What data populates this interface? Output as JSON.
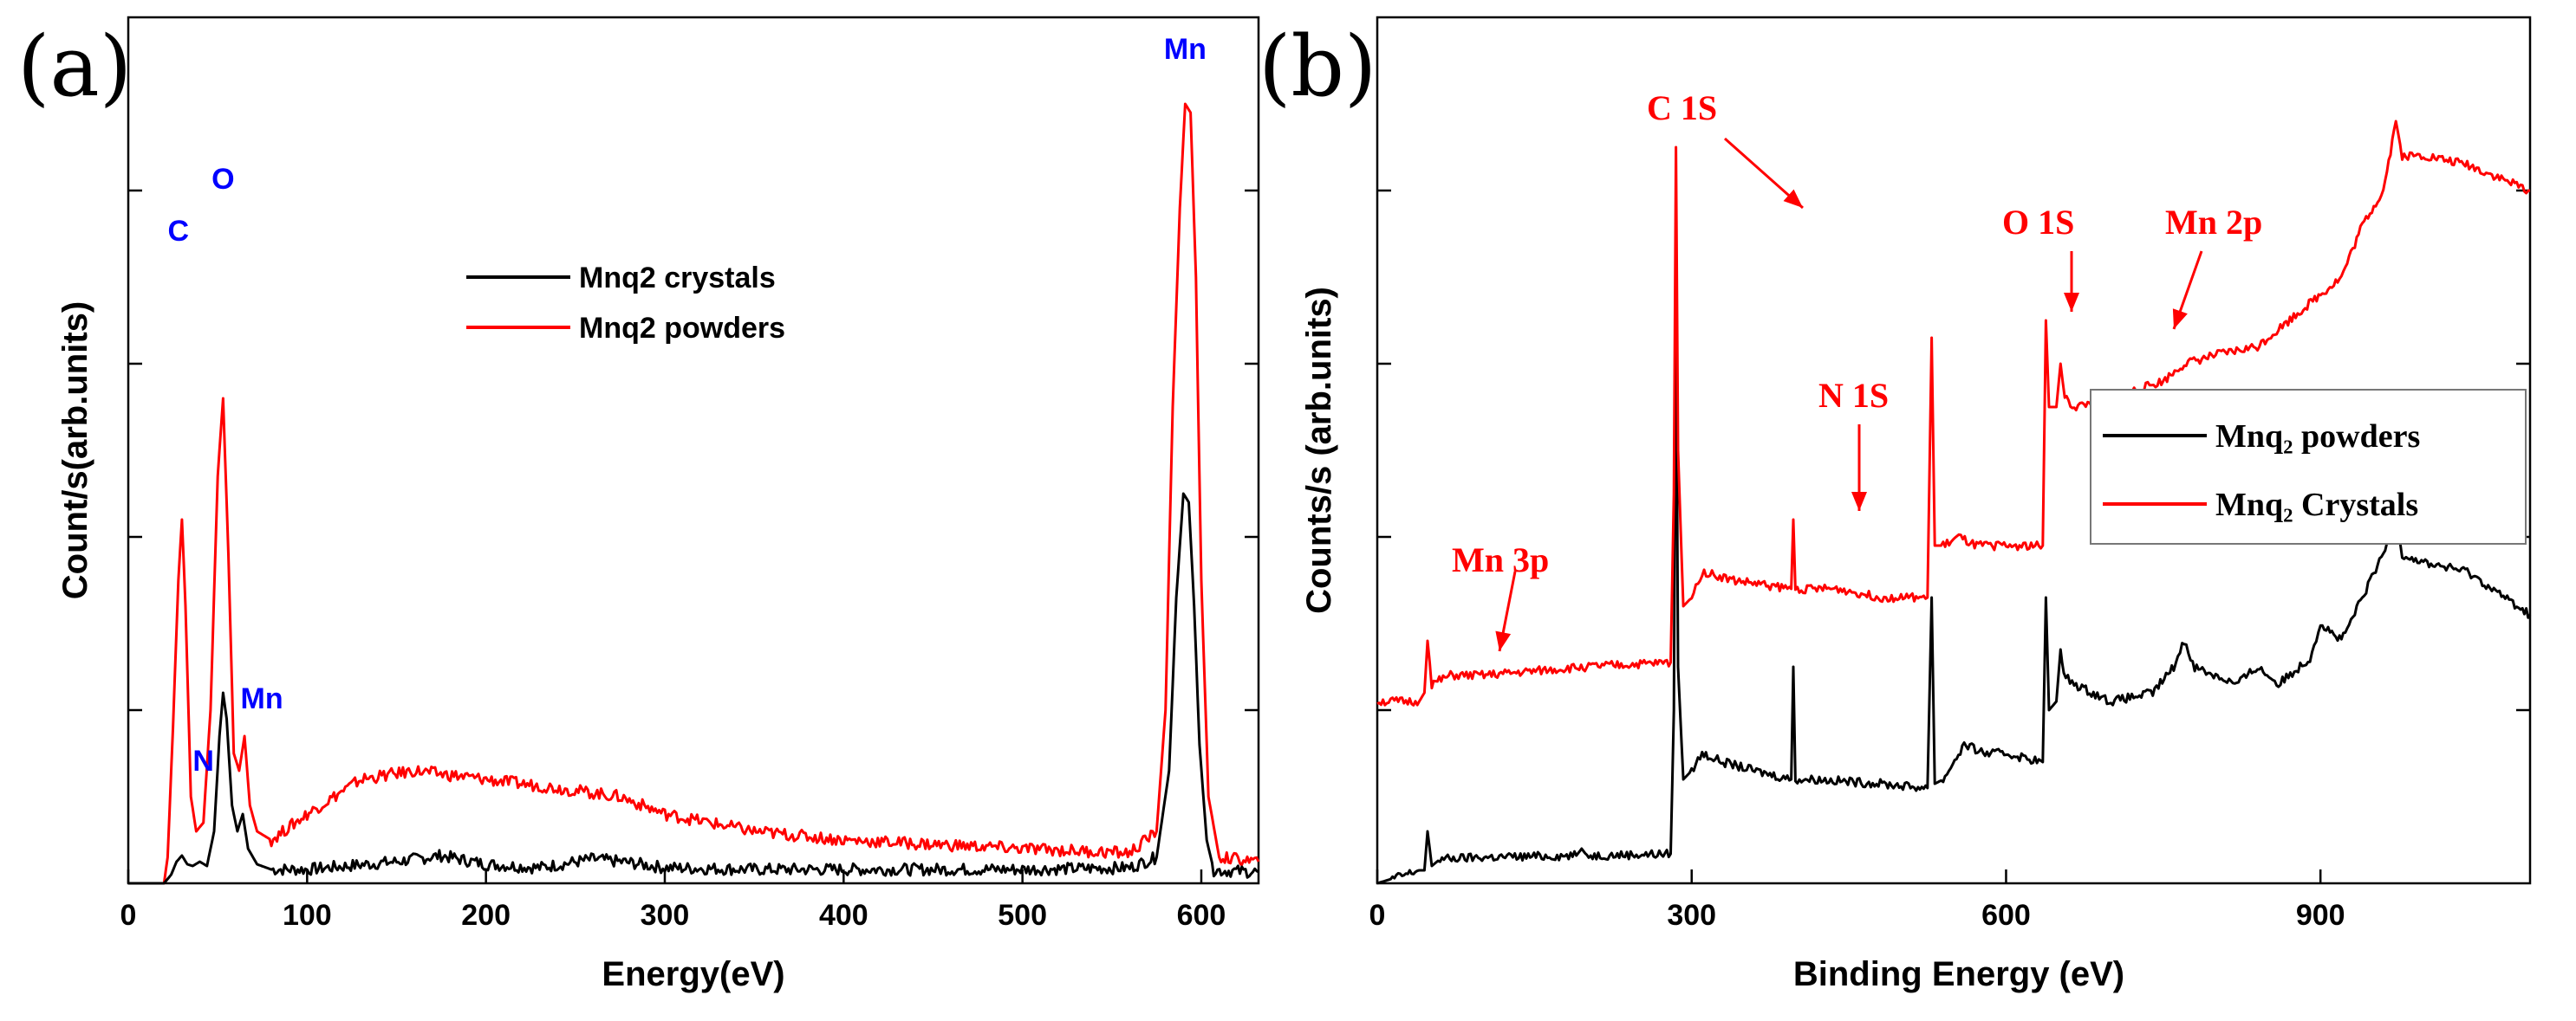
{
  "chart_data": [
    {
      "panel": "(a)",
      "type": "line",
      "title": "",
      "xlabel": "Energy(eV)",
      "ylabel": "Count/s(arb.units)",
      "xlim": [
        0,
        632
      ],
      "ylim": [
        0,
        100
      ],
      "xticks": [
        0,
        100,
        200,
        300,
        400,
        500,
        600
      ],
      "yticks": [
        20,
        40,
        60,
        80
      ],
      "show_ytick_labels": false,
      "grid": false,
      "legend_position": "center-top",
      "series": [
        {
          "name": "Mnq2 crystals",
          "color": "#000000",
          "points": [
            [
              0,
              0
            ],
            [
              20,
              0
            ],
            [
              24,
              1
            ],
            [
              27,
              2.5
            ],
            [
              30,
              3.2
            ],
            [
              33,
              2.2
            ],
            [
              36,
              2
            ],
            [
              40,
              2.5
            ],
            [
              44,
              2
            ],
            [
              48,
              6
            ],
            [
              51,
              17
            ],
            [
              53,
              22
            ],
            [
              55,
              19
            ],
            [
              58,
              9
            ],
            [
              61,
              6
            ],
            [
              64,
              8
            ],
            [
              67,
              4
            ],
            [
              72,
              2.2
            ],
            [
              80,
              1.6
            ],
            [
              100,
              1.6
            ],
            [
              150,
              2.5
            ],
            [
              175,
              3.2
            ],
            [
              200,
              2.2
            ],
            [
              230,
              1.8
            ],
            [
              260,
              2.8
            ],
            [
              280,
              2.4
            ],
            [
              300,
              1.8
            ],
            [
              350,
              1.6
            ],
            [
              400,
              1.6
            ],
            [
              450,
              1.6
            ],
            [
              500,
              1.6
            ],
            [
              560,
              1.8
            ],
            [
              575,
              3
            ],
            [
              582,
              13
            ],
            [
              586,
              33
            ],
            [
              590,
              45
            ],
            [
              593,
              44
            ],
            [
              596,
              32
            ],
            [
              599,
              16
            ],
            [
              603,
              5
            ],
            [
              607,
              1.5
            ],
            [
              632,
              1.3
            ]
          ]
        },
        {
          "name": "Mnq2 powders",
          "color": "#ff0000",
          "points": [
            [
              0,
              0
            ],
            [
              20,
              0
            ],
            [
              22,
              3
            ],
            [
              25,
              18
            ],
            [
              28,
              35
            ],
            [
              30,
              42
            ],
            [
              32,
              32
            ],
            [
              35,
              10
            ],
            [
              38,
              6
            ],
            [
              42,
              7
            ],
            [
              46,
              20
            ],
            [
              50,
              47
            ],
            [
              53,
              56
            ],
            [
              56,
              38
            ],
            [
              59,
              15
            ],
            [
              62,
              13
            ],
            [
              65,
              17
            ],
            [
              68,
              9
            ],
            [
              72,
              6
            ],
            [
              80,
              5
            ],
            [
              100,
              8
            ],
            [
              130,
              12
            ],
            [
              160,
              13
            ],
            [
              200,
              12
            ],
            [
              240,
              11
            ],
            [
              275,
              10
            ],
            [
              300,
              8
            ],
            [
              350,
              6
            ],
            [
              400,
              5
            ],
            [
              450,
              4.5
            ],
            [
              500,
              4
            ],
            [
              560,
              3.5
            ],
            [
              575,
              6
            ],
            [
              580,
              20
            ],
            [
              584,
              55
            ],
            [
              588,
              78
            ],
            [
              591,
              90
            ],
            [
              594,
              89
            ],
            [
              597,
              70
            ],
            [
              600,
              35
            ],
            [
              604,
              10
            ],
            [
              610,
              3
            ],
            [
              632,
              2.5
            ]
          ]
        }
      ],
      "annotations": [
        {
          "text": "C",
          "x": 28,
          "color": "#0000ff"
        },
        {
          "text": "N",
          "x": 42,
          "color": "#0000ff"
        },
        {
          "text": "O",
          "x": 53,
          "color": "#0000ff"
        },
        {
          "text": "Mn",
          "x": 64,
          "color": "#0000ff"
        },
        {
          "text": "Mn",
          "x": 591,
          "color": "#0000ff"
        }
      ]
    },
    {
      "panel": "(b)",
      "type": "line",
      "title": "",
      "xlabel": "Binding Energy (eV)",
      "ylabel": "Counts/s (arb.units)",
      "xlim": [
        0,
        1100
      ],
      "ylim": [
        0,
        100
      ],
      "xticks": [
        0,
        300,
        600,
        900
      ],
      "yticks": [
        20,
        40,
        60,
        80
      ],
      "show_ytick_labels": false,
      "grid": false,
      "legend_position": "right",
      "series": [
        {
          "name": "Mnq₂ powders",
          "color": "#000000",
          "points": [
            [
              0,
              0
            ],
            [
              40,
              1.5
            ],
            [
              45,
              1.5
            ],
            [
              48,
              6
            ],
            [
              52,
              2
            ],
            [
              60,
              2.8
            ],
            [
              100,
              3
            ],
            [
              190,
              3.2
            ],
            [
              195,
              4
            ],
            [
              200,
              3.2
            ],
            [
              280,
              3.4
            ],
            [
              283,
              20
            ],
            [
              285,
              70
            ],
            [
              287,
              25
            ],
            [
              292,
              12
            ],
            [
              300,
              13
            ],
            [
              310,
              15
            ],
            [
              330,
              14
            ],
            [
              360,
              13
            ],
            [
              395,
              12
            ],
            [
              397,
              25
            ],
            [
              399,
              12
            ],
            [
              420,
              12
            ],
            [
              480,
              11.5
            ],
            [
              525,
              11
            ],
            [
              529,
              33
            ],
            [
              532,
              11.5
            ],
            [
              540,
              12
            ],
            [
              560,
              16
            ],
            [
              580,
              15
            ],
            [
              600,
              15
            ],
            [
              635,
              14
            ],
            [
              638,
              33
            ],
            [
              641,
              20
            ],
            [
              648,
              21
            ],
            [
              652,
              27
            ],
            [
              655,
              24
            ],
            [
              665,
              23
            ],
            [
              700,
              21
            ],
            [
              740,
              22
            ],
            [
              760,
              25
            ],
            [
              770,
              28
            ],
            [
              780,
              25
            ],
            [
              820,
              23
            ],
            [
              840,
              25
            ],
            [
              860,
              23
            ],
            [
              890,
              26
            ],
            [
              900,
              30
            ],
            [
              920,
              28
            ],
            [
              940,
              33
            ],
            [
              960,
              38
            ],
            [
              972,
              42
            ],
            [
              978,
              38
            ],
            [
              1000,
              37
            ],
            [
              1040,
              36
            ],
            [
              1100,
              31
            ]
          ]
        },
        {
          "name": "Mnq₂ Crystals",
          "color": "#ff0000",
          "points": [
            [
              0,
              21
            ],
            [
              40,
              21
            ],
            [
              45,
              22
            ],
            [
              48,
              28
            ],
            [
              52,
              23
            ],
            [
              70,
              24
            ],
            [
              100,
              24
            ],
            [
              200,
              25
            ],
            [
              280,
              25.5
            ],
            [
              283,
              45
            ],
            [
              285,
              85
            ],
            [
              287,
              50
            ],
            [
              292,
              32
            ],
            [
              300,
              33
            ],
            [
              310,
              36
            ],
            [
              340,
              35
            ],
            [
              395,
              34
            ],
            [
              397,
              42
            ],
            [
              399,
              34
            ],
            [
              440,
              34
            ],
            [
              480,
              33
            ],
            [
              525,
              33
            ],
            [
              529,
              63
            ],
            [
              532,
              39
            ],
            [
              540,
              39
            ],
            [
              555,
              40
            ],
            [
              570,
              39
            ],
            [
              600,
              39
            ],
            [
              635,
              39
            ],
            [
              638,
              65
            ],
            [
              641,
              55
            ],
            [
              648,
              55
            ],
            [
              652,
              60
            ],
            [
              656,
              56
            ],
            [
              665,
              55
            ],
            [
              700,
              56
            ],
            [
              750,
              58
            ],
            [
              770,
              60
            ],
            [
              800,
              61
            ],
            [
              840,
              62
            ],
            [
              860,
              64
            ],
            [
              880,
              66
            ],
            [
              900,
              68
            ],
            [
              920,
              70
            ],
            [
              940,
              76
            ],
            [
              960,
              80
            ],
            [
              972,
              88
            ],
            [
              978,
              84
            ],
            [
              1000,
              84
            ],
            [
              1040,
              83
            ],
            [
              1100,
              80
            ]
          ]
        }
      ],
      "annotations": [
        {
          "text": "Mn 3p",
          "x": 48,
          "color": "#ff0000"
        },
        {
          "text": "C 1S",
          "x": 285,
          "color": "#ff0000"
        },
        {
          "text": "N 1S",
          "x": 397,
          "color": "#ff0000"
        },
        {
          "text": "O 1S",
          "x": 529,
          "color": "#ff0000"
        },
        {
          "text": "Mn 2p",
          "x": 638,
          "color": "#ff0000"
        }
      ]
    }
  ]
}
